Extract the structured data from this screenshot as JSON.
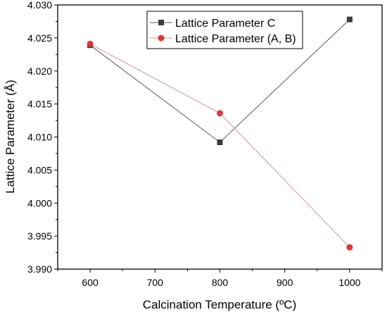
{
  "chart_data": {
    "type": "line",
    "title": "",
    "xlabel": "Calcination Temperature (ºC)",
    "ylabel": "Lattice Parameter (Å)",
    "xlim": [
      550,
      1050
    ],
    "ylim": [
      3.99,
      4.03
    ],
    "x_ticks": [
      600,
      700,
      800,
      900,
      1000
    ],
    "y_ticks": [
      3.99,
      3.995,
      4.0,
      4.005,
      4.01,
      4.015,
      4.02,
      4.025,
      4.03
    ],
    "x_tick_labels": [
      "600",
      "700",
      "800",
      "900",
      "1000"
    ],
    "y_tick_labels": [
      "3.990",
      "3.995",
      "4.000",
      "4.005",
      "4.010",
      "4.015",
      "4.020",
      "4.025",
      "4.030"
    ],
    "grid": false,
    "legend_position": "top-center",
    "series": [
      {
        "name": "Lattice Parameter C",
        "marker": "square",
        "color": "#3c3c3c",
        "line_color": "#5a5a5a",
        "x": [
          600,
          800,
          1000
        ],
        "y": [
          4.0239,
          4.0092,
          4.0278
        ]
      },
      {
        "name": "Lattice Parameter (A, B)",
        "marker": "circle",
        "color": "#e0353a",
        "line_color": "#c49a9a",
        "x": [
          600,
          800,
          1000
        ],
        "y": [
          4.0241,
          4.0136,
          3.9933
        ]
      }
    ]
  }
}
